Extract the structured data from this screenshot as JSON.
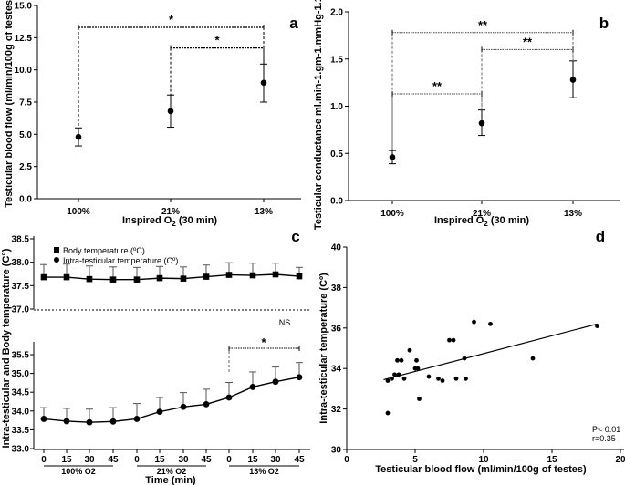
{
  "chart_data": [
    {
      "panel": "a",
      "type": "scatter",
      "categories": [
        "100%",
        "21%",
        "13%"
      ],
      "series": [
        {
          "name": "Testicular blood flow",
          "mean": [
            4.8,
            6.8,
            9.0
          ],
          "err_low": [
            4.1,
            5.55,
            7.5
          ],
          "err_high": [
            5.5,
            8.05,
            10.45
          ]
        }
      ],
      "xlabel_prefix": "Inspired O",
      "xlabel_sub": "2",
      "xlabel_suffix": " (30 min)",
      "ylabel": "Testicular blood flow (ml/min/100g of testes)",
      "ylim": [
        0,
        15
      ],
      "yticks": [
        "0.0",
        "2.5",
        "5.0",
        "7.5",
        "10.0",
        "12.5",
        "15.0"
      ],
      "significance": [
        {
          "from": "100%",
          "to": "13%",
          "label": "*",
          "y": 13.3
        },
        {
          "from": "21%",
          "to": "13%",
          "label": "*",
          "y": 11.7
        }
      ]
    },
    {
      "panel": "b",
      "type": "scatter",
      "categories": [
        "100%",
        "21%",
        "13%"
      ],
      "series": [
        {
          "name": "Testicular conductance",
          "mean": [
            0.46,
            0.82,
            1.28
          ],
          "err_low": [
            0.39,
            0.69,
            1.09
          ],
          "err_high": [
            0.53,
            0.96,
            1.48
          ]
        }
      ],
      "xlabel_prefix": "Inspired O",
      "xlabel_sub": "2",
      "xlabel_suffix": " (30 min)",
      "ylabel": "Testicular conductance ml.min-1.gm-1.mmHg-1.103",
      "ylim": [
        0,
        2
      ],
      "yticks": [
        "0.0",
        "0.5",
        "1.0",
        "1.5",
        "2.0"
      ],
      "significance": [
        {
          "from": "100%",
          "to": "13%",
          "label": "**",
          "y": 1.78
        },
        {
          "from": "21%",
          "to": "13%",
          "label": "**",
          "y": 1.6
        },
        {
          "from": "100%",
          "to": "21%",
          "label": "**",
          "y": 1.13
        }
      ]
    },
    {
      "panel": "c",
      "type": "line",
      "x_ticks": [
        "0",
        "15",
        "30",
        "45",
        "0",
        "15",
        "30",
        "45",
        "0",
        "15",
        "30",
        "45"
      ],
      "groups": [
        "100% O2",
        "21% O2",
        "13% O2"
      ],
      "xlabel": "Time (min)",
      "ylabel": "Intra-testicular and Body temperature (C°)",
      "yticks": [
        "33.0",
        "33.5",
        "34.0",
        "34.5",
        "35.0",
        "35.5",
        "37.0",
        "37.5",
        "38.0",
        "38.5"
      ],
      "series": [
        {
          "name": "Body temperature (ºC)",
          "marker": "square",
          "values": [
            37.68,
            37.68,
            37.64,
            37.63,
            37.63,
            37.66,
            37.65,
            37.69,
            37.73,
            37.72,
            37.74,
            37.7
          ],
          "errors": [
            0.27,
            0.28,
            0.28,
            0.27,
            0.26,
            0.25,
            0.25,
            0.25,
            0.26,
            0.26,
            0.24,
            0.19
          ]
        },
        {
          "name": "Intra-testicular temperature (Cº)",
          "marker": "circle",
          "values": [
            33.79,
            33.73,
            33.7,
            33.72,
            33.79,
            33.98,
            34.11,
            34.18,
            34.36,
            34.64,
            34.78,
            34.9
          ],
          "errors": [
            0.3,
            0.34,
            0.35,
            0.37,
            0.41,
            0.38,
            0.38,
            0.4,
            0.4,
            0.4,
            0.39,
            0.39
          ]
        }
      ],
      "annotations": {
        "ns": "NS",
        "star": "*"
      }
    },
    {
      "panel": "d",
      "type": "scatter",
      "xlabel": "Testicular blood flow (ml/min/100g of testes)",
      "ylabel": "Intra-testicular temperature (Cº)",
      "xlim": [
        0,
        20
      ],
      "ylim": [
        30,
        40
      ],
      "xticks": [
        "0",
        "5",
        "10",
        "15",
        "20"
      ],
      "yticks": [
        "30",
        "32",
        "34",
        "36",
        "38",
        "40"
      ],
      "points": [
        [
          3.0,
          33.4
        ],
        [
          3.0,
          31.8
        ],
        [
          3.3,
          33.5
        ],
        [
          3.5,
          33.7
        ],
        [
          3.7,
          34.4
        ],
        [
          3.8,
          33.7
        ],
        [
          4.0,
          34.4
        ],
        [
          4.2,
          33.5
        ],
        [
          4.6,
          34.9
        ],
        [
          5.0,
          34.0
        ],
        [
          5.1,
          34.4
        ],
        [
          5.2,
          34.0
        ],
        [
          5.3,
          32.5
        ],
        [
          6.0,
          33.6
        ],
        [
          6.7,
          33.5
        ],
        [
          7.0,
          33.4
        ],
        [
          7.5,
          35.4
        ],
        [
          7.8,
          35.4
        ],
        [
          8.0,
          33.5
        ],
        [
          8.6,
          34.5
        ],
        [
          8.7,
          33.5
        ],
        [
          9.3,
          36.3
        ],
        [
          10.5,
          36.2
        ],
        [
          13.6,
          34.5
        ],
        [
          18.3,
          36.1
        ]
      ],
      "regression": {
        "x0": 2.7,
        "y0": 33.45,
        "x1": 18.3,
        "y1": 36.2
      },
      "stats": [
        "P< 0.01",
        "r=0.35"
      ]
    }
  ],
  "letters": [
    "a",
    "b",
    "c",
    "d"
  ]
}
